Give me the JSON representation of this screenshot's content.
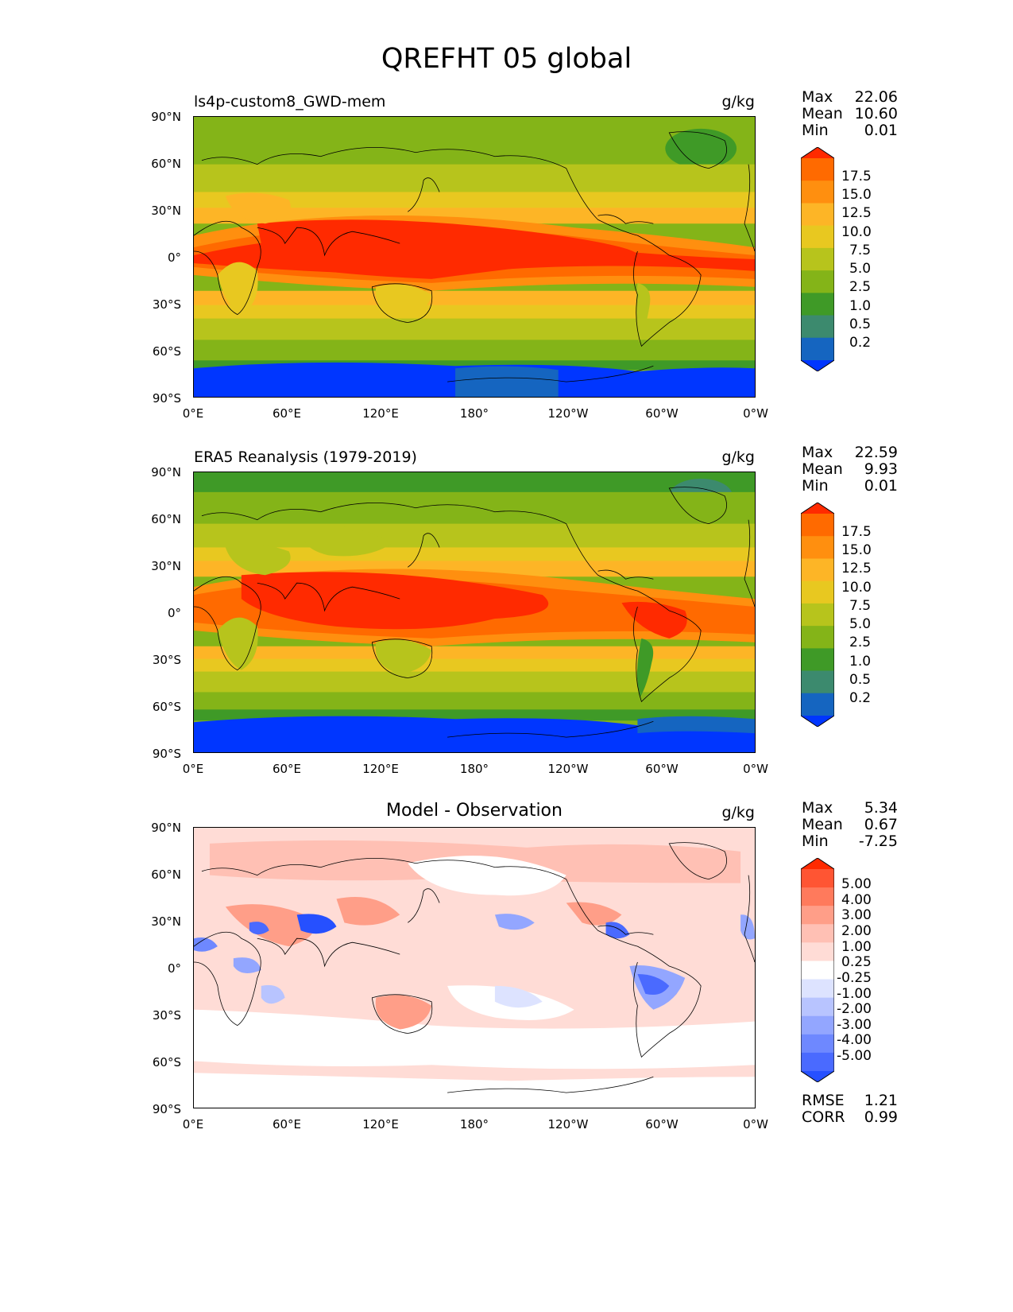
{
  "figure_title": "QREFHT 05 global",
  "panels": [
    {
      "subtitle": "ls4p-custom8_GWD-mem",
      "units": "g/kg",
      "stats": {
        "max_label": "Max",
        "max": "22.06",
        "mean_label": "Mean",
        "mean": "10.60",
        "min_label": "Min",
        "min": "0.01"
      },
      "colorbar": {
        "labels": [
          "17.5",
          "15.0",
          "12.5",
          "10.0",
          "7.5",
          "5.0",
          "2.5",
          "1.0",
          "0.5",
          "0.2"
        ],
        "colors": [
          "#ff2a00",
          "#ff6a00",
          "#ff8f0f",
          "#fdb526",
          "#e8c820",
          "#b7c41c",
          "#84b418",
          "#3f9a27",
          "#3c8a6e",
          "#1565c0",
          "#0036ff"
        ]
      }
    },
    {
      "subtitle": "ERA5 Reanalysis (1979-2019)",
      "units": "g/kg",
      "stats": {
        "max_label": "Max",
        "max": "22.59",
        "mean_label": "Mean",
        "mean": "9.93",
        "min_label": "Min",
        "min": "0.01"
      },
      "colorbar": {
        "labels": [
          "17.5",
          "15.0",
          "12.5",
          "10.0",
          "7.5",
          "5.0",
          "2.5",
          "1.0",
          "0.5",
          "0.2"
        ],
        "colors": [
          "#ff2a00",
          "#ff6a00",
          "#ff8f0f",
          "#fdb526",
          "#e8c820",
          "#b7c41c",
          "#84b418",
          "#3f9a27",
          "#3c8a6e",
          "#1565c0",
          "#0036ff"
        ]
      }
    },
    {
      "subtitle": "Model - Observation",
      "units": "g/kg",
      "stats": {
        "max_label": "Max",
        "max": "5.34",
        "mean_label": "Mean",
        "mean": "0.67",
        "min_label": "Min",
        "min": "-7.25"
      },
      "colorbar": {
        "labels": [
          "5.00",
          "4.00",
          "3.00",
          "2.00",
          "1.00",
          "0.25",
          "-0.25",
          "-1.00",
          "-2.00",
          "-3.00",
          "-4.00",
          "-5.00"
        ],
        "colors": [
          "#ff2a00",
          "#ff5533",
          "#ff7a5c",
          "#ff9e88",
          "#ffc0b4",
          "#ffdcd6",
          "#ffffff",
          "#dde3ff",
          "#b8c4ff",
          "#93a6ff",
          "#6e88ff",
          "#4a6aff",
          "#2650ff"
        ]
      },
      "metrics": {
        "rmse_label": "RMSE",
        "rmse": "1.21",
        "corr_label": "CORR",
        "corr": "0.99"
      }
    }
  ],
  "axes": {
    "lat_labels": [
      "90°N",
      "60°N",
      "30°N",
      "0°",
      "30°S",
      "60°S",
      "90°S"
    ],
    "lon_labels": [
      "0°E",
      "60°E",
      "120°E",
      "180°",
      "120°W",
      "60°W",
      "0°W"
    ]
  }
}
